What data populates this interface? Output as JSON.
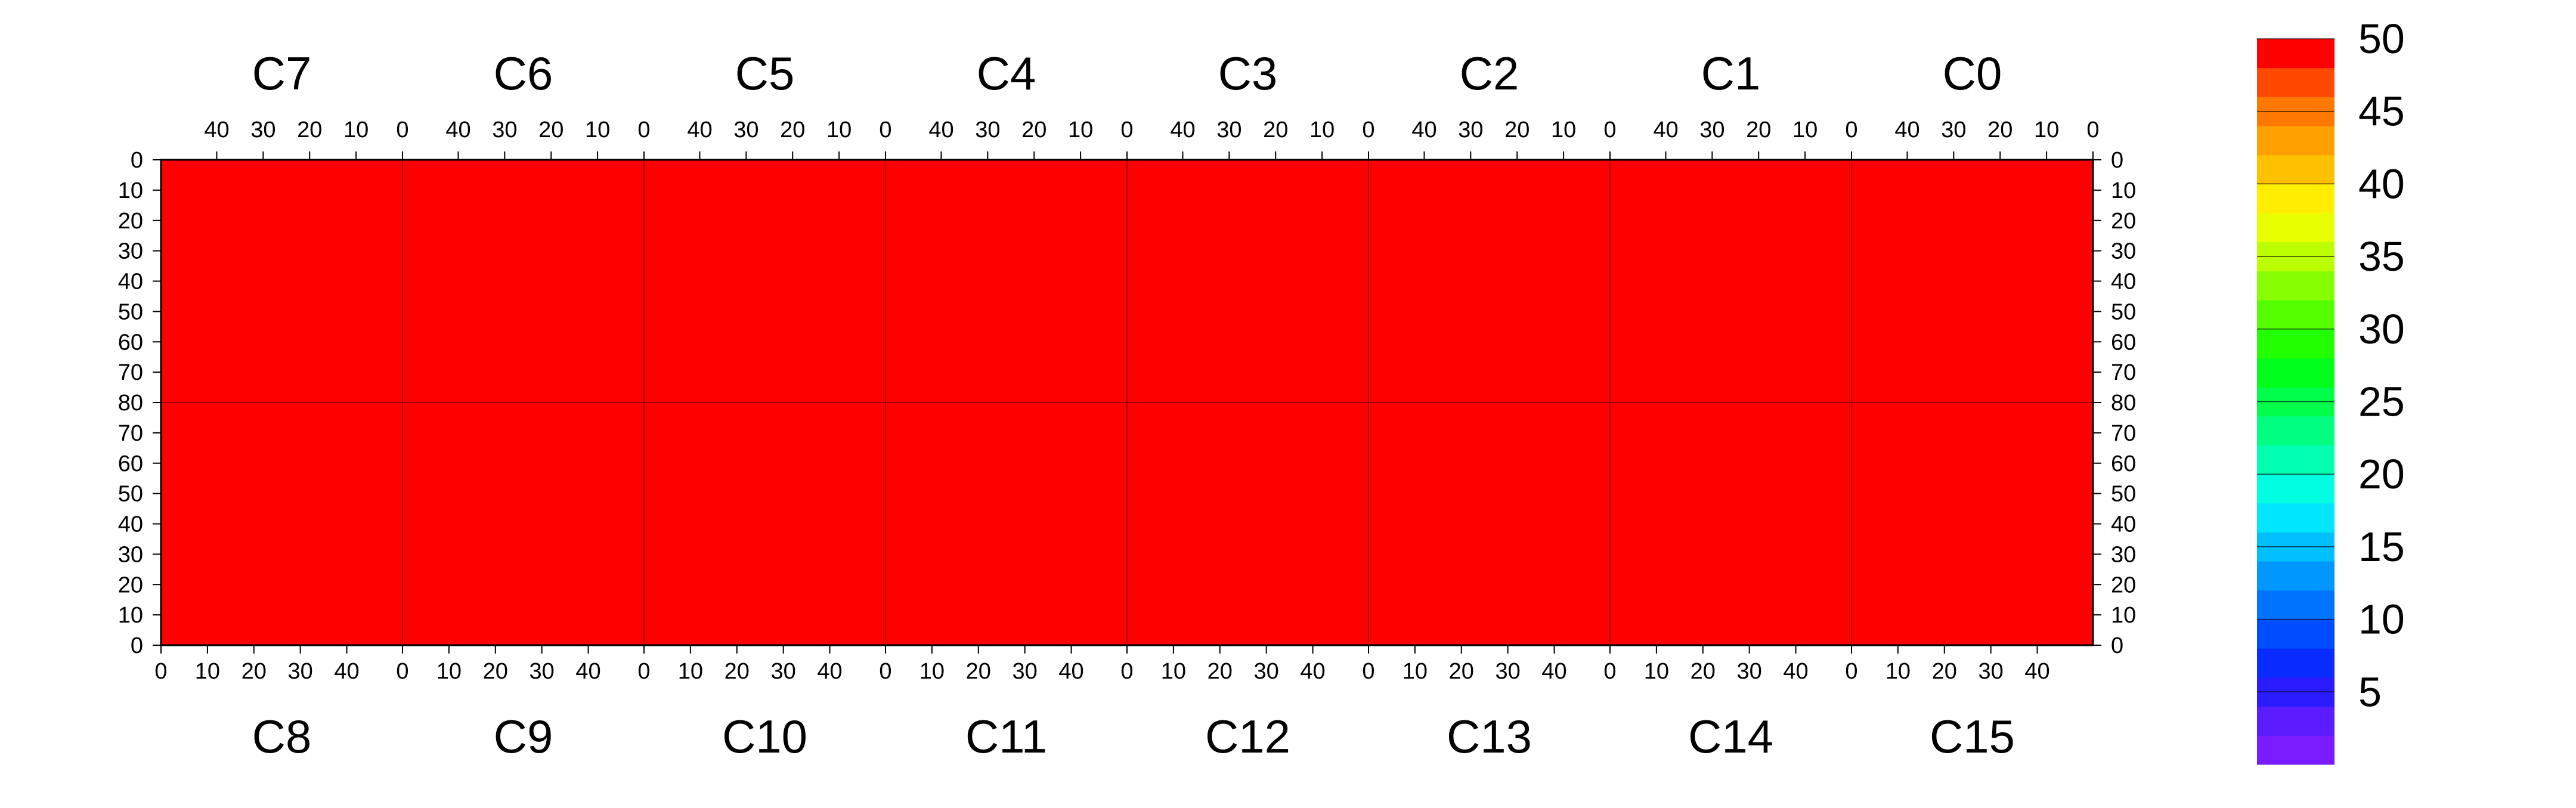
{
  "chart_data": {
    "type": "heatmap",
    "title": "",
    "top_chips": [
      "C7",
      "C6",
      "C5",
      "C4",
      "C3",
      "C2",
      "C1",
      "C0"
    ],
    "bottom_chips": [
      "C8",
      "C9",
      "C10",
      "C11",
      "C12",
      "C13",
      "C14",
      "C15"
    ],
    "top_x_ticks": [
      40,
      30,
      20,
      10,
      0
    ],
    "bottom_x_ticks": [
      0,
      10,
      20,
      30,
      40
    ],
    "x_range_per_chip": [
      0,
      52
    ],
    "top_y_ticks": [
      0,
      10,
      20,
      30,
      40,
      50,
      60,
      70,
      80
    ],
    "bottom_y_ticks": [
      80,
      70,
      60,
      50,
      40,
      30,
      20,
      10,
      0
    ],
    "y_range_per_half": [
      0,
      80
    ],
    "colorbar": {
      "min": 0,
      "max": 50,
      "tick_labels": [
        5,
        10,
        15,
        20,
        25,
        30,
        35,
        40,
        45,
        50
      ],
      "colors": [
        "#7a1cff",
        "#5b1dff",
        "#2b1bff",
        "#0a2bff",
        "#004cff",
        "#0073ff",
        "#0098ff",
        "#00bfff",
        "#00e6ff",
        "#00ffe0",
        "#00ffb0",
        "#00ff80",
        "#00ff4a",
        "#00ff1a",
        "#22ff00",
        "#55ff00",
        "#88ff00",
        "#bbff00",
        "#e8ff00",
        "#ffee00",
        "#ffc000",
        "#ffa000",
        "#ff7800",
        "#ff4800",
        "#ff0000"
      ]
    },
    "dominant_value": 50,
    "background_color": "#ff0000",
    "notes_visible": []
  }
}
